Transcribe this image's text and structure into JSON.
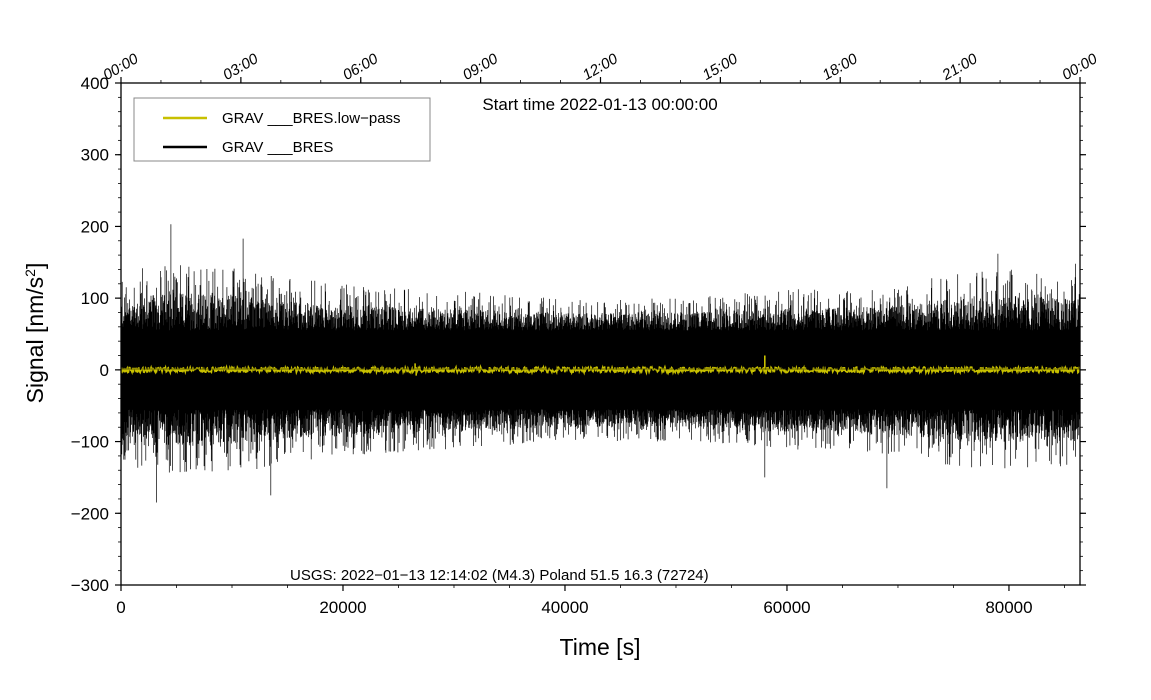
{
  "chart_data": {
    "type": "line",
    "title": "",
    "xlabel": "Time [s]",
    "ylabel": "Signal [nm/s",
    "ylabel_sup": "2",
    "ylabel_close": "]",
    "xlim": [
      0,
      86400
    ],
    "ylim": [
      -300,
      400
    ],
    "x_ticks": [
      0,
      20000,
      40000,
      60000,
      80000
    ],
    "x_tick_labels": [
      "0",
      "20000",
      "40000",
      "60000",
      "80000"
    ],
    "y_ticks": [
      -300,
      -200,
      -100,
      0,
      100,
      200,
      300,
      400
    ],
    "y_tick_labels": [
      "−300",
      "−200",
      "−100",
      "0",
      "100",
      "200",
      "300",
      "400"
    ],
    "top_axis_ticks_seconds": [
      0,
      10800,
      21600,
      32400,
      43200,
      54000,
      64800,
      75600,
      86400
    ],
    "top_axis_labels": [
      "00:00",
      "03:00",
      "06:00",
      "09:00",
      "12:00",
      "15:00",
      "18:00",
      "21:00",
      "00:00"
    ],
    "annotations": {
      "start_time": "Start time 2022-01-13 00:00:00",
      "event": "USGS: 2022−01−13 12:14:02 (M4.3) Poland 51.5 16.3 (72724)"
    },
    "legend": {
      "position": "top-left",
      "entries": [
        {
          "label": "GRAV ___BRES.low−pass",
          "color": "#c8c000"
        },
        {
          "label": "GRAV ___BRES",
          "color": "#000000"
        }
      ]
    },
    "series": [
      {
        "name": "GRAV ___BRES",
        "color": "#000000",
        "description": "raw gravimeter residual, noise envelope",
        "envelope_x": [
          0,
          5000,
          10000,
          15000,
          20000,
          25000,
          30000,
          35000,
          40000,
          45000,
          50000,
          55000,
          60000,
          65000,
          70000,
          75000,
          80000,
          86400
        ],
        "envelope_upper": [
          140,
          150,
          145,
          130,
          120,
          115,
          110,
          105,
          100,
          100,
          100,
          105,
          115,
          110,
          120,
          135,
          140,
          135
        ],
        "envelope_lower": [
          -140,
          -150,
          -145,
          -130,
          -120,
          -115,
          -110,
          -105,
          -100,
          -100,
          -100,
          -105,
          -115,
          -110,
          -120,
          -135,
          -140,
          -135
        ],
        "core_amplitude": 55,
        "peaks": [
          {
            "x": 4500,
            "y": 203
          },
          {
            "x": 3200,
            "y": -185
          },
          {
            "x": 11000,
            "y": 183
          },
          {
            "x": 13500,
            "y": -175
          },
          {
            "x": 58000,
            "y": -150
          },
          {
            "x": 69000,
            "y": -165
          },
          {
            "x": 79000,
            "y": 162
          },
          {
            "x": 86000,
            "y": 148
          }
        ]
      },
      {
        "name": "GRAV ___BRES.low−pass",
        "color": "#c8c000",
        "description": "low-pass filtered signal near zero",
        "amplitude": 4,
        "spikes": [
          {
            "x": 26500,
            "y": 9
          },
          {
            "x": 26600,
            "y": -8
          },
          {
            "x": 58000,
            "y": 20
          },
          {
            "x": 58100,
            "y": -6
          }
        ]
      }
    ]
  }
}
